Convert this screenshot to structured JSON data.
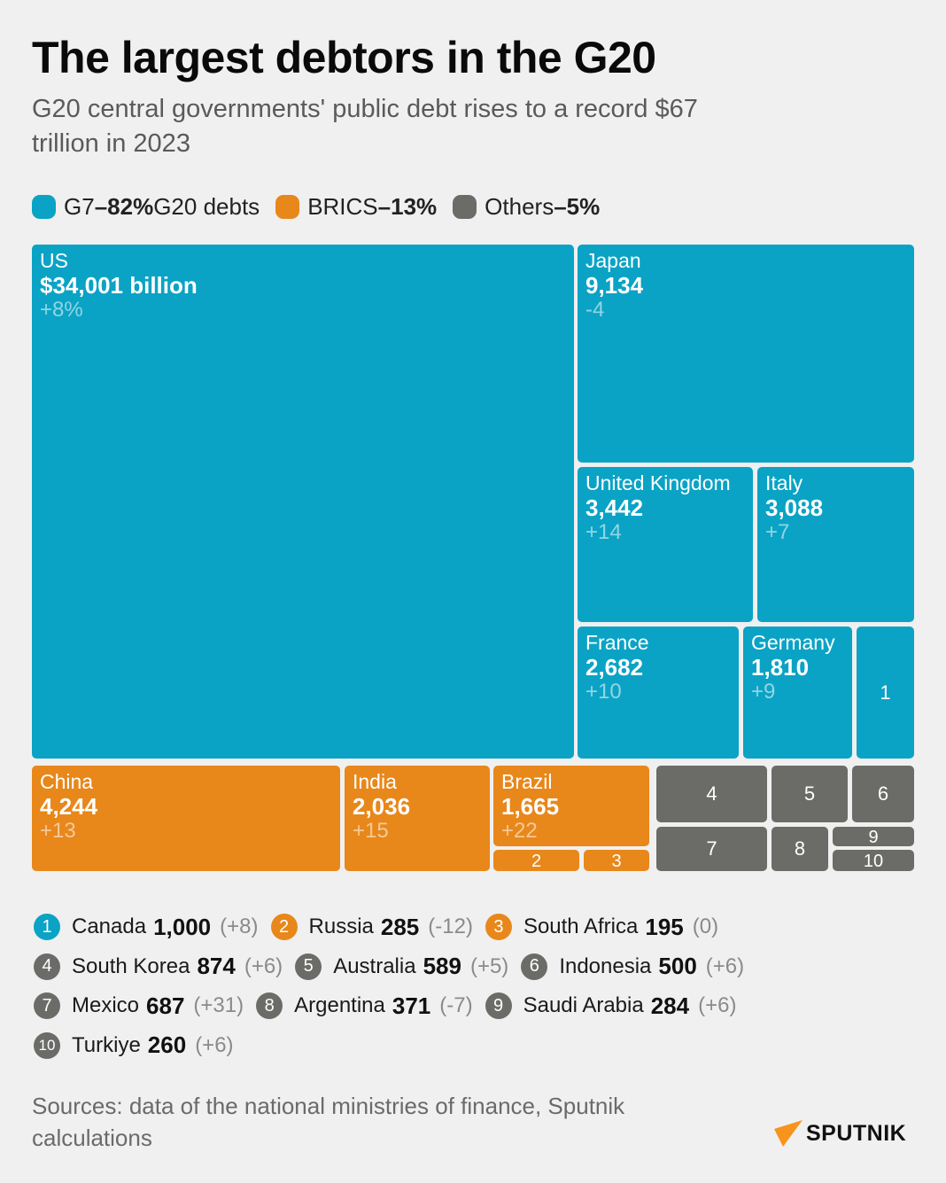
{
  "header": {
    "title": "The largest debtors in the G20",
    "subtitle": "G20 central governments' public debt rises to a record $67 trillion in 2023"
  },
  "legend": [
    {
      "group": "G7",
      "label": "G7",
      "dash": "– ",
      "pct": "82%",
      "suffix": "G20 debts",
      "color": "#0aa3c5"
    },
    {
      "group": "BRICS",
      "label": "BRICS",
      "dash": "– ",
      "pct": "13%",
      "suffix": "",
      "color": "#e8871a"
    },
    {
      "group": "Others",
      "label": "Others",
      "dash": "– ",
      "pct": "5%",
      "suffix": "",
      "color": "#6b6c68"
    }
  ],
  "chart_data": {
    "type": "treemap",
    "title": "The largest debtors in the G20",
    "subtitle": "G20 central governments' public debt rises to a record $67 trillion in 2023",
    "units": "billion USD",
    "change_units": "percent change",
    "groups": [
      {
        "name": "G7",
        "share_pct": 82,
        "color": "#0aa3c5"
      },
      {
        "name": "BRICS",
        "share_pct": 13,
        "color": "#e8871a"
      },
      {
        "name": "Others",
        "share_pct": 5,
        "color": "#6b6c68"
      }
    ],
    "tiles": [
      {
        "id": "us",
        "group": "G7",
        "name": "US",
        "value_label": "$34,001 billion",
        "value": 34001,
        "change": "+8%"
      },
      {
        "id": "japan",
        "group": "G7",
        "name": "Japan",
        "value_label": "9,134",
        "value": 9134,
        "change": "-4"
      },
      {
        "id": "uk",
        "group": "G7",
        "name": "United Kingdom",
        "value_label": "3,442",
        "value": 3442,
        "change": "+14"
      },
      {
        "id": "italy",
        "group": "G7",
        "name": "Italy",
        "value_label": "3,088",
        "value": 3088,
        "change": "+7"
      },
      {
        "id": "france",
        "group": "G7",
        "name": "France",
        "value_label": "2,682",
        "value": 2682,
        "change": "+10"
      },
      {
        "id": "germany",
        "group": "G7",
        "name": "Germany",
        "value_label": "1,810",
        "value": 1810,
        "change": "+9"
      },
      {
        "id": "n1",
        "group": "G7",
        "number": "1",
        "ref": "Canada",
        "value": 1000
      },
      {
        "id": "china",
        "group": "BRICS",
        "name": "China",
        "value_label": "4,244",
        "value": 4244,
        "change": "+13"
      },
      {
        "id": "india",
        "group": "BRICS",
        "name": "India",
        "value_label": "2,036",
        "value": 2036,
        "change": "+15"
      },
      {
        "id": "brazil",
        "group": "BRICS",
        "name": "Brazil",
        "value_label": "1,665",
        "value": 1665,
        "change": "+22"
      },
      {
        "id": "n2",
        "group": "BRICS",
        "number": "2",
        "ref": "Russia",
        "value": 285
      },
      {
        "id": "n3",
        "group": "BRICS",
        "number": "3",
        "ref": "South Africa",
        "value": 195
      },
      {
        "id": "n4",
        "group": "Others",
        "number": "4",
        "ref": "South Korea",
        "value": 874
      },
      {
        "id": "n5",
        "group": "Others",
        "number": "5",
        "ref": "Australia",
        "value": 589
      },
      {
        "id": "n6",
        "group": "Others",
        "number": "6",
        "ref": "Indonesia",
        "value": 500
      },
      {
        "id": "n7",
        "group": "Others",
        "number": "7",
        "ref": "Mexico",
        "value": 687
      },
      {
        "id": "n8",
        "group": "Others",
        "number": "8",
        "ref": "Argentina",
        "value": 371
      },
      {
        "id": "n9",
        "group": "Others",
        "number": "9",
        "ref": "Saudi Arabia",
        "value": 284
      },
      {
        "id": "n10",
        "group": "Others",
        "number": "10",
        "ref": "Turkiye",
        "value": 260
      }
    ],
    "small_countries": [
      {
        "number": "1",
        "group": "G7",
        "name": "Canada",
        "value": "1,000",
        "change": "(+8)"
      },
      {
        "number": "2",
        "group": "BRICS",
        "name": "Russia",
        "value": "285",
        "change": "(-12)"
      },
      {
        "number": "3",
        "group": "BRICS",
        "name": "South Africa",
        "value": "195",
        "change": "(0)"
      },
      {
        "number": "4",
        "group": "Others",
        "name": "South Korea",
        "value": "874",
        "change": "(+6)"
      },
      {
        "number": "5",
        "group": "Others",
        "name": "Australia",
        "value": "589",
        "change": "(+5)"
      },
      {
        "number": "6",
        "group": "Others",
        "name": "Indonesia",
        "value": "500",
        "change": "(+6)"
      },
      {
        "number": "7",
        "group": "Others",
        "name": "Mexico",
        "value": "687",
        "change": "(+31)"
      },
      {
        "number": "8",
        "group": "Others",
        "name": "Argentina",
        "value": "371",
        "change": "(-7)"
      },
      {
        "number": "9",
        "group": "Others",
        "name": "Saudi Arabia",
        "value": "284",
        "change": "(+6)"
      },
      {
        "number": "10",
        "group": "Others",
        "name": "Turkiye",
        "value": "260",
        "change": "(+6)"
      }
    ]
  },
  "footer": {
    "source": "Sources: data of the national ministries of finance, Sputnik calculations",
    "brand": "SPUTNIK"
  }
}
